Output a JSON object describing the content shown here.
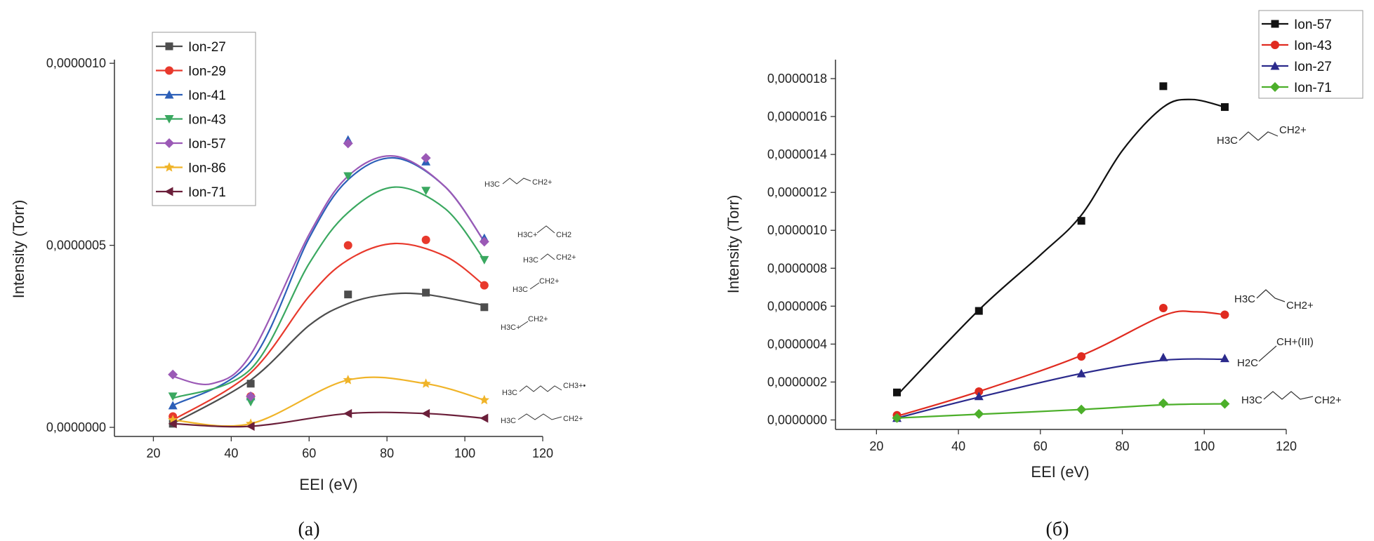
{
  "chart_data": [
    {
      "type": "scatter",
      "title": "",
      "panel_label": "(a)",
      "xlabel": "EEI (eV)",
      "ylabel": "Intensity (Torr)",
      "xlim": [
        10,
        120
      ],
      "ylim": [
        -2.5e-08,
        1.01e-06
      ],
      "xticks": [
        "20",
        "40",
        "60",
        "80",
        "100",
        "120"
      ],
      "yticks": [
        "0,0000000",
        "0,0000005",
        "0,0000010"
      ],
      "grid": false,
      "legend_position": "top-left",
      "x": [
        25,
        45,
        70,
        90,
        105
      ],
      "series": [
        {
          "name": "Ion-27",
          "color": "#4d4d4d",
          "marker": "square",
          "values": [
            1e-08,
            1.2e-07,
            3.65e-07,
            3.7e-07,
            3.3e-07
          ],
          "fit": [
            [
              25,
              1e-08
            ],
            [
              45,
              1.3e-07
            ],
            [
              60,
              2.8e-07
            ],
            [
              70,
              3.4e-07
            ],
            [
              80,
              3.65e-07
            ],
            [
              90,
              3.65e-07
            ],
            [
              105,
              3.35e-07
            ]
          ]
        },
        {
          "name": "Ion-29",
          "color": "#e8392c",
          "marker": "circle",
          "values": [
            3e-08,
            8.5e-08,
            5e-07,
            5.15e-07,
            3.9e-07
          ],
          "fit": [
            [
              25,
              2e-08
            ],
            [
              45,
              1.5e-07
            ],
            [
              60,
              3.6e-07
            ],
            [
              70,
              4.6e-07
            ],
            [
              82,
              5.05e-07
            ],
            [
              95,
              4.7e-07
            ],
            [
              105,
              3.9e-07
            ]
          ]
        },
        {
          "name": "Ion-41",
          "color": "#2c5fb8",
          "marker": "triangle-up",
          "values": [
            6e-08,
            8.5e-08,
            7.9e-07,
            7.3e-07,
            5.2e-07
          ],
          "fit": [
            [
              25,
              6e-08
            ],
            [
              45,
              1.8e-07
            ],
            [
              60,
              5.2e-07
            ],
            [
              70,
              6.8e-07
            ],
            [
              82,
              7.4e-07
            ],
            [
              95,
              6.6e-07
            ],
            [
              105,
              5.1e-07
            ]
          ]
        },
        {
          "name": "Ion-43",
          "color": "#3aa860",
          "marker": "triangle-down",
          "values": [
            8.5e-08,
            7e-08,
            6.9e-07,
            6.5e-07,
            4.6e-07
          ],
          "fit": [
            [
              25,
              8e-08
            ],
            [
              45,
              1.6e-07
            ],
            [
              60,
              4.5e-07
            ],
            [
              70,
              5.9e-07
            ],
            [
              82,
              6.6e-07
            ],
            [
              95,
              6e-07
            ],
            [
              105,
              4.6e-07
            ]
          ]
        },
        {
          "name": "Ion-57",
          "color": "#9b59b6",
          "marker": "diamond",
          "values": [
            1.45e-07,
            8.5e-08,
            7.8e-07,
            7.4e-07,
            5.1e-07
          ],
          "fit": [
            [
              25,
              1.4e-07
            ],
            [
              35,
              1.2e-07
            ],
            [
              45,
              2e-07
            ],
            [
              60,
              5.3e-07
            ],
            [
              70,
              6.9e-07
            ],
            [
              82,
              7.45e-07
            ],
            [
              95,
              6.6e-07
            ],
            [
              105,
              5.1e-07
            ]
          ]
        },
        {
          "name": "Ion-86",
          "color": "#f0b429",
          "marker": "star",
          "values": [
            2e-08,
            1e-08,
            1.3e-07,
            1.2e-07,
            7.5e-08
          ],
          "fit": [
            [
              25,
              2e-08
            ],
            [
              45,
              1e-08
            ],
            [
              70,
              1.3e-07
            ],
            [
              90,
              1.2e-07
            ],
            [
              105,
              7.5e-08
            ]
          ]
        },
        {
          "name": "Ion-71",
          "color": "#6b1f3a",
          "marker": "triangle-left",
          "values": [
            1e-08,
            3e-09,
            3.8e-08,
            3.8e-08,
            2.5e-08
          ],
          "fit": [
            [
              25,
              1e-08
            ],
            [
              45,
              3e-09
            ],
            [
              70,
              3.8e-08
            ],
            [
              90,
              3.8e-08
            ],
            [
              105,
              2.5e-08
            ]
          ]
        }
      ]
    },
    {
      "type": "scatter",
      "title": "",
      "panel_label": "(б)",
      "xlabel": "EEI (eV)",
      "ylabel": "Intensity (Torr)",
      "xlim": [
        10,
        120
      ],
      "ylim": [
        -5e-08,
        1.9e-06
      ],
      "xticks": [
        "20",
        "40",
        "60",
        "80",
        "100",
        "120"
      ],
      "yticks": [
        "0,0000000",
        "0,0000002",
        "0,0000004",
        "0,0000006",
        "0,0000008",
        "0,0000010",
        "0,0000012",
        "0,0000014",
        "0,0000016",
        "0,0000018"
      ],
      "grid": false,
      "legend_position": "top-right",
      "x": [
        25,
        45,
        70,
        90,
        105
      ],
      "series": [
        {
          "name": "Ion-57",
          "color": "#111111",
          "marker": "square",
          "values": [
            1.45e-07,
            5.75e-07,
            1.05e-06,
            1.76e-06,
            1.65e-06
          ],
          "fit": [
            [
              25,
              1.3e-07
            ],
            [
              45,
              5.8e-07
            ],
            [
              60,
              8.7e-07
            ],
            [
              70,
              1.08e-06
            ],
            [
              80,
              1.42e-06
            ],
            [
              90,
              1.65e-06
            ],
            [
              97,
              1.69e-06
            ],
            [
              105,
              1.65e-06
            ]
          ]
        },
        {
          "name": "Ion-43",
          "color": "#e02b20",
          "marker": "circle",
          "values": [
            2.5e-08,
            1.5e-07,
            3.35e-07,
            5.9e-07,
            5.55e-07
          ],
          "fit": [
            [
              25,
              2e-08
            ],
            [
              45,
              1.5e-07
            ],
            [
              70,
              3.4e-07
            ],
            [
              90,
              5.5e-07
            ],
            [
              98,
              5.7e-07
            ],
            [
              105,
              5.55e-07
            ]
          ]
        },
        {
          "name": "Ion-27",
          "color": "#2b2a8c",
          "marker": "triangle-up",
          "values": [
            1e-08,
            1.25e-07,
            2.45e-07,
            3.3e-07,
            3.25e-07
          ],
          "fit": [
            [
              25,
              1e-08
            ],
            [
              45,
              1.2e-07
            ],
            [
              70,
              2.45e-07
            ],
            [
              90,
              3.15e-07
            ],
            [
              105,
              3.2e-07
            ]
          ]
        },
        {
          "name": "Ion-71",
          "color": "#4caf2a",
          "marker": "diamond",
          "values": [
            1e-08,
            3.2e-08,
            5.5e-08,
            8.8e-08,
            8.5e-08
          ],
          "fit": [
            [
              25,
              1e-08
            ],
            [
              45,
              3e-08
            ],
            [
              70,
              5.5e-08
            ],
            [
              90,
              8e-08
            ],
            [
              105,
              8.5e-08
            ]
          ]
        }
      ]
    }
  ]
}
